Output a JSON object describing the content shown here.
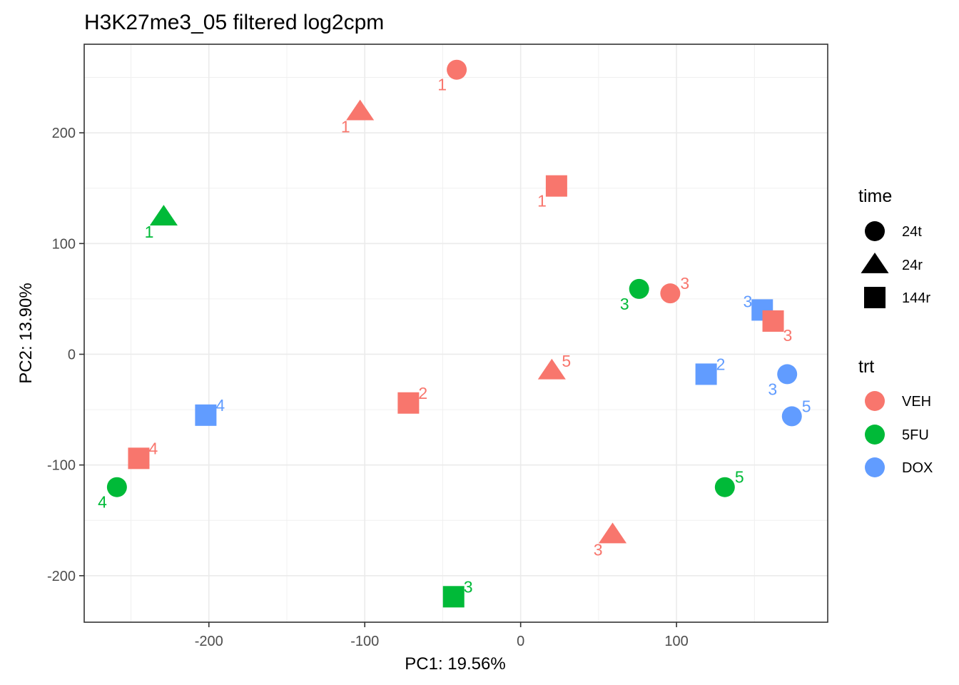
{
  "chart_data": {
    "type": "scatter",
    "title": "H3K27me3_05 filtered log2cpm",
    "xlabel": "PC1: 19.56%",
    "ylabel": "PC2: 13.90%",
    "xlim": [
      -280,
      197
    ],
    "ylim": [
      -242,
      280
    ],
    "x_ticks": [
      -200,
      -100,
      0,
      100
    ],
    "x_tick_labels": [
      "-200",
      "-100",
      "0",
      "100"
    ],
    "y_ticks": [
      -200,
      -100,
      0,
      100,
      200
    ],
    "y_tick_labels": [
      "-200",
      "-100",
      "0",
      "100",
      "200"
    ],
    "grid": true,
    "legend_position": "right",
    "legends": [
      {
        "title": "time",
        "entries": [
          {
            "label": "24t",
            "shape": "circle"
          },
          {
            "label": "24r",
            "shape": "triangle"
          },
          {
            "label": "144r",
            "shape": "square"
          }
        ]
      },
      {
        "title": "trt",
        "entries": [
          {
            "label": "VEH",
            "color": "#F8766D"
          },
          {
            "label": "5FU",
            "color": "#00BA38"
          },
          {
            "label": "DOX",
            "color": "#619CFF"
          }
        ]
      }
    ],
    "colors": {
      "VEH": "#F8766D",
      "5FU": "#00BA38",
      "DOX": "#619CFF"
    },
    "points": [
      {
        "x": -41,
        "y": 257,
        "time": "24t",
        "trt": "VEH",
        "label": "1",
        "label_pos": "bottom-left"
      },
      {
        "x": -103,
        "y": 219,
        "time": "24r",
        "trt": "VEH",
        "label": "1",
        "label_pos": "bottom-left"
      },
      {
        "x": 23,
        "y": 152,
        "time": "144r",
        "trt": "VEH",
        "label": "1",
        "label_pos": "bottom-left"
      },
      {
        "x": -229,
        "y": 124,
        "time": "24r",
        "trt": "5FU",
        "label": "1",
        "label_pos": "bottom-left"
      },
      {
        "x": 76,
        "y": 59,
        "time": "24t",
        "trt": "5FU",
        "label": "3",
        "label_pos": "bottom-left"
      },
      {
        "x": 96,
        "y": 55,
        "time": "24t",
        "trt": "VEH",
        "label": "3",
        "label_pos": "top-right"
      },
      {
        "x": 155,
        "y": 40,
        "time": "144r",
        "trt": "DOX",
        "label": "3",
        "label_pos": "top-left"
      },
      {
        "x": 162,
        "y": 30,
        "time": "144r",
        "trt": "VEH",
        "label": "3",
        "label_pos": "bottom-right"
      },
      {
        "x": 119,
        "y": -18,
        "time": "144r",
        "trt": "DOX",
        "label": "2",
        "label_pos": "top-right"
      },
      {
        "x": 171,
        "y": -18,
        "time": "24t",
        "trt": "DOX",
        "label": "3",
        "label_pos": "bottom-left"
      },
      {
        "x": 174,
        "y": -56,
        "time": "24t",
        "trt": "DOX",
        "label": "5",
        "label_pos": "top-right"
      },
      {
        "x": 20,
        "y": -15,
        "time": "24r",
        "trt": "VEH",
        "label": "5",
        "label_pos": "top-right"
      },
      {
        "x": -72,
        "y": -44,
        "time": "144r",
        "trt": "VEH",
        "label": "2",
        "label_pos": "top-right"
      },
      {
        "x": -202,
        "y": -55,
        "time": "144r",
        "trt": "DOX",
        "label": "4",
        "label_pos": "top-right"
      },
      {
        "x": -245,
        "y": -94,
        "time": "144r",
        "trt": "VEH",
        "label": "4",
        "label_pos": "top-right"
      },
      {
        "x": -259,
        "y": -120,
        "time": "24t",
        "trt": "5FU",
        "label": "4",
        "label_pos": "bottom-left"
      },
      {
        "x": 131,
        "y": -120,
        "time": "24t",
        "trt": "5FU",
        "label": "5",
        "label_pos": "top-right"
      },
      {
        "x": 59,
        "y": -163,
        "time": "24r",
        "trt": "VEH",
        "label": "3",
        "label_pos": "bottom-left"
      },
      {
        "x": -43,
        "y": -219,
        "time": "144r",
        "trt": "5FU",
        "label": "3",
        "label_pos": "top-right"
      }
    ]
  }
}
